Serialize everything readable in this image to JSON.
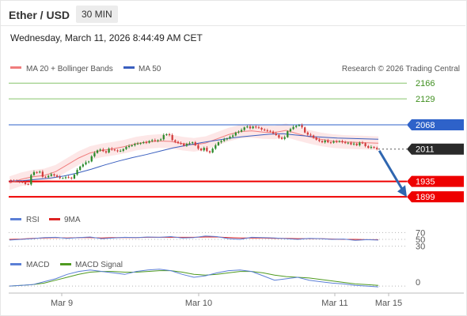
{
  "header": {
    "pair": "Ether / USD",
    "timeframe": "30 MIN"
  },
  "datetime": "Wednesday, March 11, 2026 8:44:49 AM CET",
  "legend": {
    "bb": "MA 20 + Bollinger Bands",
    "ma50": "MA 50",
    "credit": "Research © 2026 Trading Central",
    "rsi": "RSI",
    "rsi_ma": "9MA",
    "macd": "MACD",
    "macd_signal": "MACD Signal"
  },
  "colors": {
    "green_level": "#86c46a",
    "blue_level": "#2e62c9",
    "red_level": "#ee0000",
    "ma50": "#3a5fbf",
    "bb": "#f07d7d",
    "bb_fill": "#fde3e3",
    "up": "#2b8a2b",
    "down": "#d13b3b",
    "arrow": "#2f66b0",
    "macd": "#5b7fd6",
    "macd_signal": "#4f9a20",
    "rsi": "#5b7fd6",
    "rsi_ma": "#dd2222"
  },
  "chart_data": [
    {
      "type": "line",
      "panel": "price",
      "y_range": [
        1875,
        2185
      ],
      "x_labels": [
        "Mar 9",
        "Mar 10",
        "Mar 11",
        "Mar 15"
      ],
      "levels": [
        {
          "label": "2166",
          "value": 2166,
          "kind": "resistance"
        },
        {
          "label": "2129",
          "value": 2129,
          "kind": "resistance"
        },
        {
          "label": "2068",
          "value": 2068,
          "kind": "pivot"
        },
        {
          "label": "2011",
          "value": 2011,
          "kind": "last"
        },
        {
          "label": "1935",
          "value": 1935,
          "kind": "support"
        },
        {
          "label": "1899",
          "value": 1899,
          "kind": "support"
        }
      ],
      "series": [
        {
          "name": "Price",
          "values": [
            1937,
            1936,
            1935,
            1934,
            1933,
            1929,
            1928,
            1950,
            1957,
            1956,
            1958,
            1946,
            1945,
            1948,
            1952,
            1949,
            1946,
            1943,
            1943,
            1945,
            1944,
            1942,
            1951,
            1962,
            1970,
            1975,
            1980,
            1982,
            1994,
            2002,
            2008,
            2010,
            2006,
            2003,
            2012,
            2010,
            2008,
            2006,
            2007,
            2011,
            2016,
            2018,
            2020,
            2023,
            2024,
            2025,
            2027,
            2026,
            2030,
            2032,
            2030,
            2032,
            2034,
            2044,
            2046,
            2044,
            2032,
            2028,
            2025,
            2024,
            2019,
            2023,
            2025,
            2027,
            2020,
            2012,
            2008,
            2014,
            2006,
            2003,
            2012,
            2020,
            2027,
            2030,
            2034,
            2036,
            2040,
            2043,
            2050,
            2052,
            2056,
            2062,
            2064,
            2060,
            2064,
            2062,
            2061,
            2057,
            2055,
            2054,
            2052,
            2048,
            2044,
            2038,
            2035,
            2039,
            2053,
            2058,
            2063,
            2066,
            2067,
            2062,
            2050,
            2045,
            2043,
            2038,
            2033,
            2030,
            2027,
            2031,
            2027,
            2026,
            2029,
            2028,
            2030,
            2027,
            2025,
            2026,
            2022,
            2024,
            2020,
            2026,
            2025,
            2018,
            2014,
            2016,
            2014,
            2011
          ]
        },
        {
          "name": "MA 20",
          "values": [
            1931,
            1940,
            1946,
            1949,
            1958,
            1974,
            1990,
            2002,
            2008,
            2012,
            2017,
            2024,
            2028,
            2030,
            2029,
            2024,
            2021,
            2025,
            2035,
            2045,
            2052,
            2054,
            2051,
            2050,
            2055,
            2047,
            2040,
            2034,
            2030,
            2028,
            2027,
            2026,
            2025
          ]
        },
        {
          "name": "MA 50",
          "values": [
            1936,
            1937,
            1940,
            1943,
            1948,
            1955,
            1964,
            1974,
            1983,
            1991,
            1998,
            2006,
            2014,
            2020,
            2026,
            2031,
            2036,
            2040,
            2043,
            2046,
            2047,
            2044,
            2041,
            2039,
            2037,
            2036,
            2035,
            2034
          ]
        }
      ]
    },
    {
      "type": "line",
      "panel": "rsi",
      "y_ticks": [
        "70",
        "50",
        "30"
      ],
      "series": [
        {
          "name": "RSI",
          "values": [
            48,
            50,
            52,
            55,
            56,
            53,
            55,
            57,
            52,
            54,
            56,
            55,
            57,
            56,
            58,
            54,
            55,
            60,
            58,
            52,
            50,
            56,
            55,
            54,
            52,
            50,
            53,
            52,
            50,
            51,
            47,
            49,
            48
          ]
        },
        {
          "name": "9MA",
          "values": [
            50,
            51,
            53,
            54,
            55,
            54,
            55,
            55,
            54,
            55,
            55,
            55,
            56,
            56,
            56,
            56,
            56,
            57,
            57,
            55,
            54,
            54,
            54,
            53,
            53,
            52,
            52,
            52,
            51,
            50,
            50,
            49,
            49
          ]
        }
      ]
    },
    {
      "type": "line",
      "panel": "macd",
      "y_ticks": [
        "0"
      ],
      "series": [
        {
          "name": "MACD",
          "values": [
            0,
            1,
            2,
            6,
            10,
            16,
            20,
            22,
            20,
            18,
            16,
            20,
            22,
            23,
            21,
            16,
            12,
            14,
            18,
            21,
            22,
            20,
            14,
            8,
            10,
            12,
            8,
            6,
            4,
            3,
            1,
            0,
            -1
          ]
        },
        {
          "name": "MACD Signal",
          "values": [
            0,
            1,
            2,
            4,
            8,
            12,
            16,
            19,
            20,
            20,
            19,
            19,
            20,
            21,
            21,
            19,
            16,
            15,
            16,
            18,
            20,
            20,
            18,
            15,
            13,
            12,
            11,
            9,
            7,
            5,
            3,
            2,
            1
          ]
        }
      ]
    }
  ]
}
